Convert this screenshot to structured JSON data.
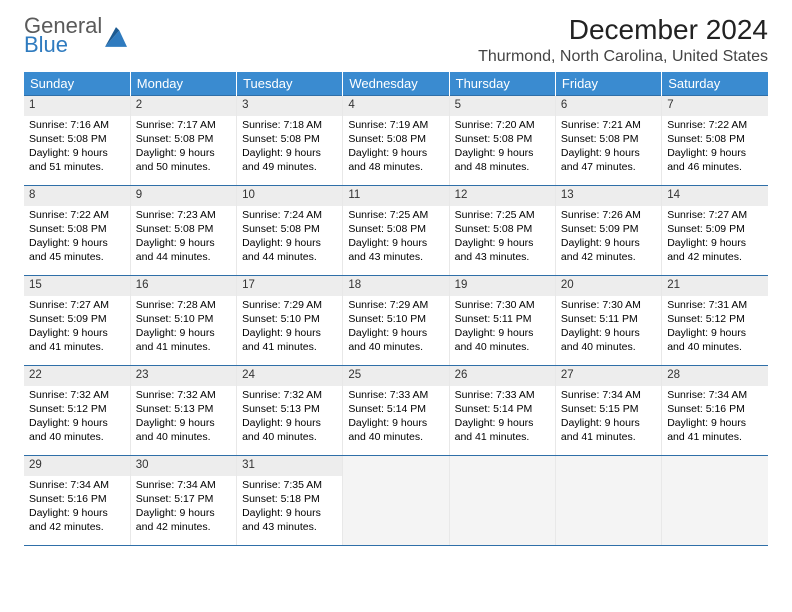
{
  "logo": {
    "line1": "General",
    "line2": "Blue",
    "triangle_color": "#2f7bbf"
  },
  "title": "December 2024",
  "subtitle": "Thurmond, North Carolina, United States",
  "colors": {
    "header_bg": "#3a8bd0",
    "header_fg": "#ffffff",
    "border": "#2f6fa8",
    "daynum_bg": "#ededed"
  },
  "day_headers": [
    "Sunday",
    "Monday",
    "Tuesday",
    "Wednesday",
    "Thursday",
    "Friday",
    "Saturday"
  ],
  "weeks": [
    [
      {
        "n": "1",
        "sr": "7:16 AM",
        "ss": "5:08 PM",
        "dl": "9 hours and 51 minutes."
      },
      {
        "n": "2",
        "sr": "7:17 AM",
        "ss": "5:08 PM",
        "dl": "9 hours and 50 minutes."
      },
      {
        "n": "3",
        "sr": "7:18 AM",
        "ss": "5:08 PM",
        "dl": "9 hours and 49 minutes."
      },
      {
        "n": "4",
        "sr": "7:19 AM",
        "ss": "5:08 PM",
        "dl": "9 hours and 48 minutes."
      },
      {
        "n": "5",
        "sr": "7:20 AM",
        "ss": "5:08 PM",
        "dl": "9 hours and 48 minutes."
      },
      {
        "n": "6",
        "sr": "7:21 AM",
        "ss": "5:08 PM",
        "dl": "9 hours and 47 minutes."
      },
      {
        "n": "7",
        "sr": "7:22 AM",
        "ss": "5:08 PM",
        "dl": "9 hours and 46 minutes."
      }
    ],
    [
      {
        "n": "8",
        "sr": "7:22 AM",
        "ss": "5:08 PM",
        "dl": "9 hours and 45 minutes."
      },
      {
        "n": "9",
        "sr": "7:23 AM",
        "ss": "5:08 PM",
        "dl": "9 hours and 44 minutes."
      },
      {
        "n": "10",
        "sr": "7:24 AM",
        "ss": "5:08 PM",
        "dl": "9 hours and 44 minutes."
      },
      {
        "n": "11",
        "sr": "7:25 AM",
        "ss": "5:08 PM",
        "dl": "9 hours and 43 minutes."
      },
      {
        "n": "12",
        "sr": "7:25 AM",
        "ss": "5:08 PM",
        "dl": "9 hours and 43 minutes."
      },
      {
        "n": "13",
        "sr": "7:26 AM",
        "ss": "5:09 PM",
        "dl": "9 hours and 42 minutes."
      },
      {
        "n": "14",
        "sr": "7:27 AM",
        "ss": "5:09 PM",
        "dl": "9 hours and 42 minutes."
      }
    ],
    [
      {
        "n": "15",
        "sr": "7:27 AM",
        "ss": "5:09 PM",
        "dl": "9 hours and 41 minutes."
      },
      {
        "n": "16",
        "sr": "7:28 AM",
        "ss": "5:10 PM",
        "dl": "9 hours and 41 minutes."
      },
      {
        "n": "17",
        "sr": "7:29 AM",
        "ss": "5:10 PM",
        "dl": "9 hours and 41 minutes."
      },
      {
        "n": "18",
        "sr": "7:29 AM",
        "ss": "5:10 PM",
        "dl": "9 hours and 40 minutes."
      },
      {
        "n": "19",
        "sr": "7:30 AM",
        "ss": "5:11 PM",
        "dl": "9 hours and 40 minutes."
      },
      {
        "n": "20",
        "sr": "7:30 AM",
        "ss": "5:11 PM",
        "dl": "9 hours and 40 minutes."
      },
      {
        "n": "21",
        "sr": "7:31 AM",
        "ss": "5:12 PM",
        "dl": "9 hours and 40 minutes."
      }
    ],
    [
      {
        "n": "22",
        "sr": "7:32 AM",
        "ss": "5:12 PM",
        "dl": "9 hours and 40 minutes."
      },
      {
        "n": "23",
        "sr": "7:32 AM",
        "ss": "5:13 PM",
        "dl": "9 hours and 40 minutes."
      },
      {
        "n": "24",
        "sr": "7:32 AM",
        "ss": "5:13 PM",
        "dl": "9 hours and 40 minutes."
      },
      {
        "n": "25",
        "sr": "7:33 AM",
        "ss": "5:14 PM",
        "dl": "9 hours and 40 minutes."
      },
      {
        "n": "26",
        "sr": "7:33 AM",
        "ss": "5:14 PM",
        "dl": "9 hours and 41 minutes."
      },
      {
        "n": "27",
        "sr": "7:34 AM",
        "ss": "5:15 PM",
        "dl": "9 hours and 41 minutes."
      },
      {
        "n": "28",
        "sr": "7:34 AM",
        "ss": "5:16 PM",
        "dl": "9 hours and 41 minutes."
      }
    ],
    [
      {
        "n": "29",
        "sr": "7:34 AM",
        "ss": "5:16 PM",
        "dl": "9 hours and 42 minutes."
      },
      {
        "n": "30",
        "sr": "7:34 AM",
        "ss": "5:17 PM",
        "dl": "9 hours and 42 minutes."
      },
      {
        "n": "31",
        "sr": "7:35 AM",
        "ss": "5:18 PM",
        "dl": "9 hours and 43 minutes."
      },
      {
        "empty": true
      },
      {
        "empty": true
      },
      {
        "empty": true
      },
      {
        "empty": true
      }
    ]
  ],
  "labels": {
    "sunrise": "Sunrise:",
    "sunset": "Sunset:",
    "daylight": "Daylight:"
  }
}
